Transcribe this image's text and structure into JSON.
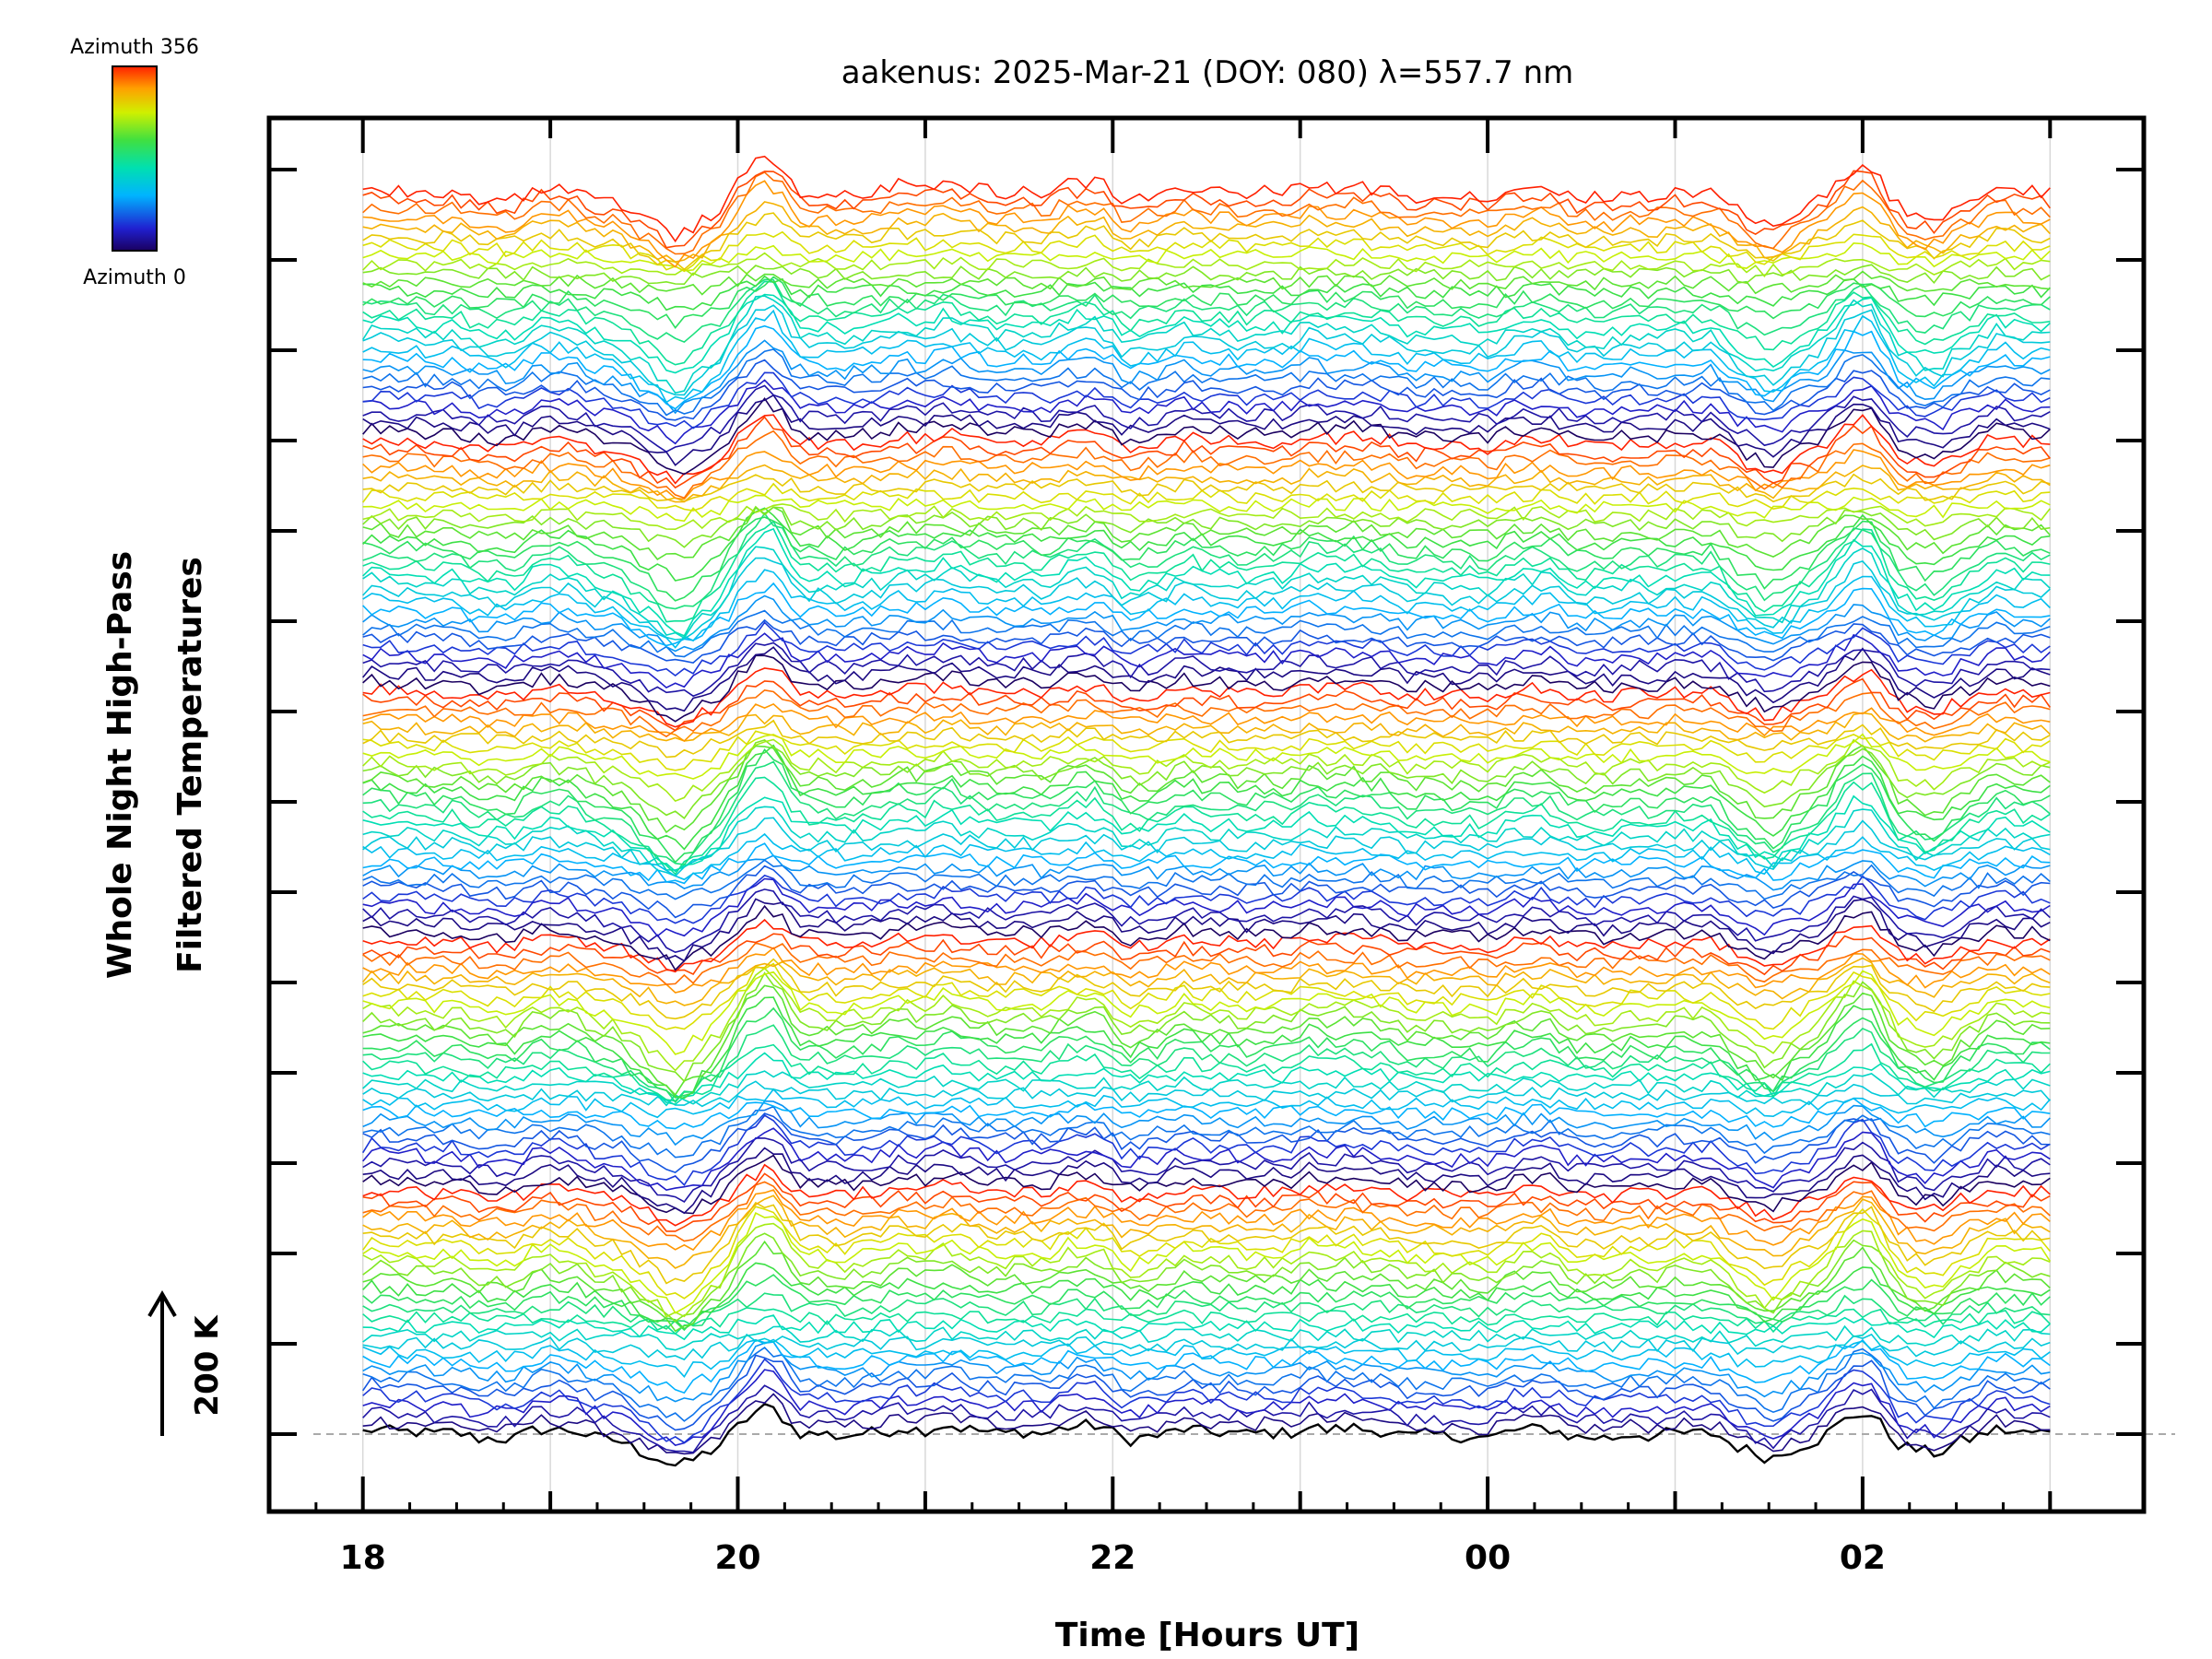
{
  "chart_data": {
    "type": "line",
    "title": "aakenus: 2025-Mar-21 (DOY: 080) λ=557.7 nm",
    "xlabel": "Time [Hours UT]",
    "ylabel_line1": "Whole Night High-Pass",
    "ylabel_line2": "Filtered Temperatures",
    "x_tick_labels": [
      "18",
      "20",
      "22",
      "00",
      "02"
    ],
    "xlim_hours_since_18UT": [
      -0.5,
      9.5
    ],
    "data_xrange_hours_since_18UT": [
      0,
      9.0
    ],
    "scale_bar_label": "200 K",
    "colorbar": {
      "top_label": "Azimuth 356",
      "bottom_label": "Azimuth 0",
      "min_azimuth": 0,
      "max_azimuth": 356
    },
    "baseline_style": "dashed",
    "n_traces": 140,
    "n_groups": 5,
    "traces_per_group": 28,
    "y_units_per_tick": 1,
    "colormap": "rainbow (dark blue at azimuth 0 to red at 356)",
    "features": [
      {
        "name": "dip",
        "time_hours_since_18UT": 1.7,
        "relative_amplitude": -0.9
      },
      {
        "name": "peak",
        "time_hours_since_18UT": 2.15,
        "relative_amplitude": 1.0
      },
      {
        "name": "peak",
        "time_hours_since_18UT": 3.15,
        "relative_amplitude": 0.45
      },
      {
        "name": "peak",
        "time_hours_since_18UT": 3.9,
        "relative_amplitude": 0.25
      },
      {
        "name": "peak",
        "time_hours_since_18UT": 5.05,
        "relative_amplitude": 0.35
      },
      {
        "name": "dip",
        "time_hours_since_18UT": 7.5,
        "relative_amplitude": -0.55
      },
      {
        "name": "peak",
        "time_hours_since_18UT": 8.0,
        "relative_amplitude": 0.9
      },
      {
        "name": "dip",
        "time_hours_since_18UT": 8.25,
        "relative_amplitude": -0.5
      }
    ]
  }
}
